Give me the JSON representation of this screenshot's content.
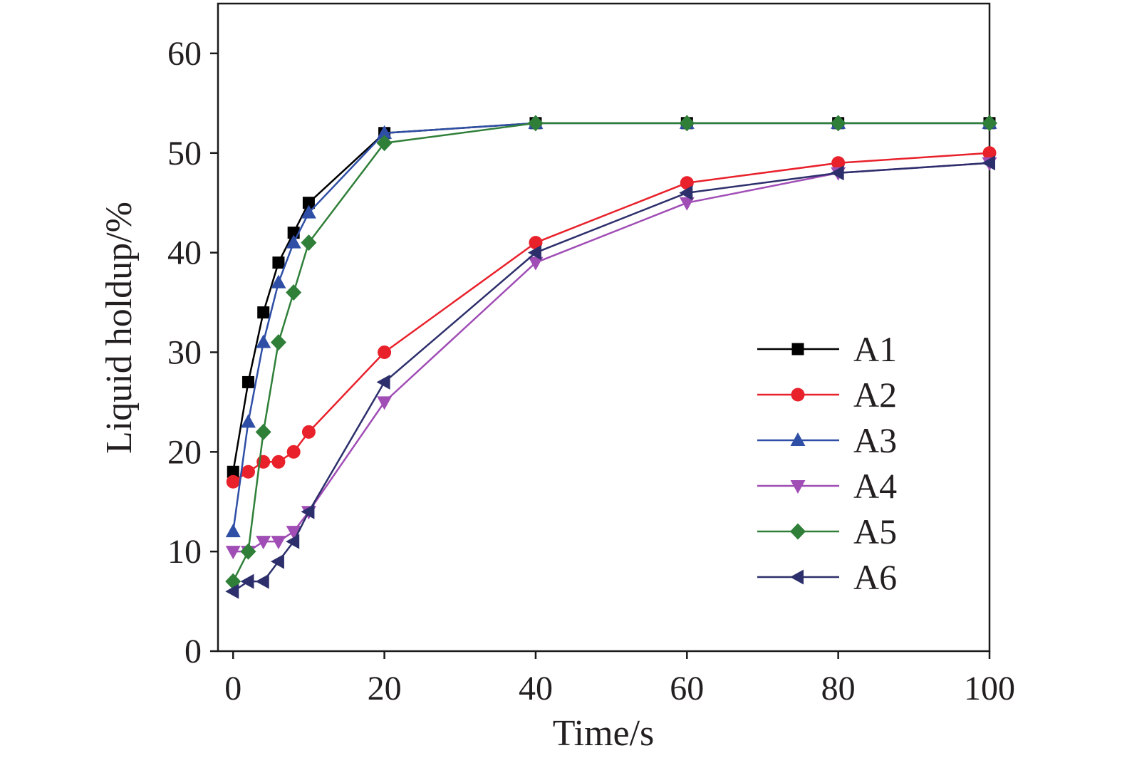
{
  "chart_data": {
    "type": "line",
    "xlabel": "Time/s",
    "ylabel": "Liquid holdup/%",
    "xlim": [
      -2,
      100
    ],
    "ylim": [
      0,
      65
    ],
    "xticks": [
      0,
      20,
      40,
      60,
      80,
      100
    ],
    "yticks": [
      0,
      10,
      20,
      30,
      40,
      50,
      60
    ],
    "grid": false,
    "legend": {
      "position": "center-right"
    },
    "x": [
      0,
      2,
      4,
      6,
      8,
      10,
      20,
      40,
      60,
      80,
      100
    ],
    "series": [
      {
        "name": "A1",
        "color": "#000000",
        "marker": "square",
        "values": [
          18,
          27,
          34,
          39,
          42,
          45,
          52,
          53,
          53,
          53,
          53
        ]
      },
      {
        "name": "A2",
        "color": "#e8212b",
        "marker": "circle",
        "values": [
          17,
          18,
          19,
          19,
          20,
          22,
          30,
          41,
          47,
          49,
          50
        ]
      },
      {
        "name": "A3",
        "color": "#2f4fa6",
        "marker": "triangle-up",
        "values": [
          12,
          23,
          31,
          37,
          41,
          44,
          52,
          53,
          53,
          53,
          53
        ]
      },
      {
        "name": "A4",
        "color": "#a04db5",
        "marker": "triangle-down",
        "values": [
          10,
          10,
          11,
          11,
          12,
          14,
          25,
          39,
          45,
          48,
          49
        ]
      },
      {
        "name": "A5",
        "color": "#2f7f39",
        "marker": "diamond",
        "values": [
          7,
          10,
          22,
          31,
          36,
          41,
          51,
          53,
          53,
          53,
          53
        ]
      },
      {
        "name": "A6",
        "color": "#2c2f6b",
        "marker": "triangle-left",
        "values": [
          6,
          7,
          7,
          9,
          11,
          14,
          27,
          40,
          46,
          48,
          49
        ]
      }
    ]
  }
}
